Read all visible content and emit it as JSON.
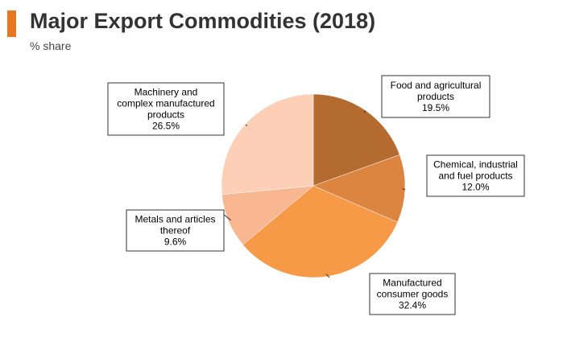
{
  "header": {
    "title": "Major Export Commodities (2018)",
    "subtitle": "% share",
    "accent_color": "#e87722"
  },
  "chart_data": {
    "type": "pie",
    "title": "Major Export Commodities (2018)",
    "subtitle": "% share",
    "slices": [
      {
        "label_lines": [
          "Food and agricultural",
          "products"
        ],
        "value": 19.5,
        "value_label": "19.5%",
        "color": "#b46b30"
      },
      {
        "label_lines": [
          "Chemical, industrial",
          "and fuel products"
        ],
        "value": 12.0,
        "value_label": "12.0%",
        "color": "#db8540"
      },
      {
        "label_lines": [
          "Manufactured",
          "consumer goods"
        ],
        "value": 32.4,
        "value_label": "32.4%",
        "color": "#f79a48"
      },
      {
        "label_lines": [
          "Metals and articles",
          "thereof"
        ],
        "value": 9.6,
        "value_label": "9.6%",
        "color": "#f9b791"
      },
      {
        "label_lines": [
          "Machinery and",
          "complex manufactured",
          "products"
        ],
        "value": 26.5,
        "value_label": "26.5%",
        "color": "#fccfb6"
      }
    ]
  }
}
